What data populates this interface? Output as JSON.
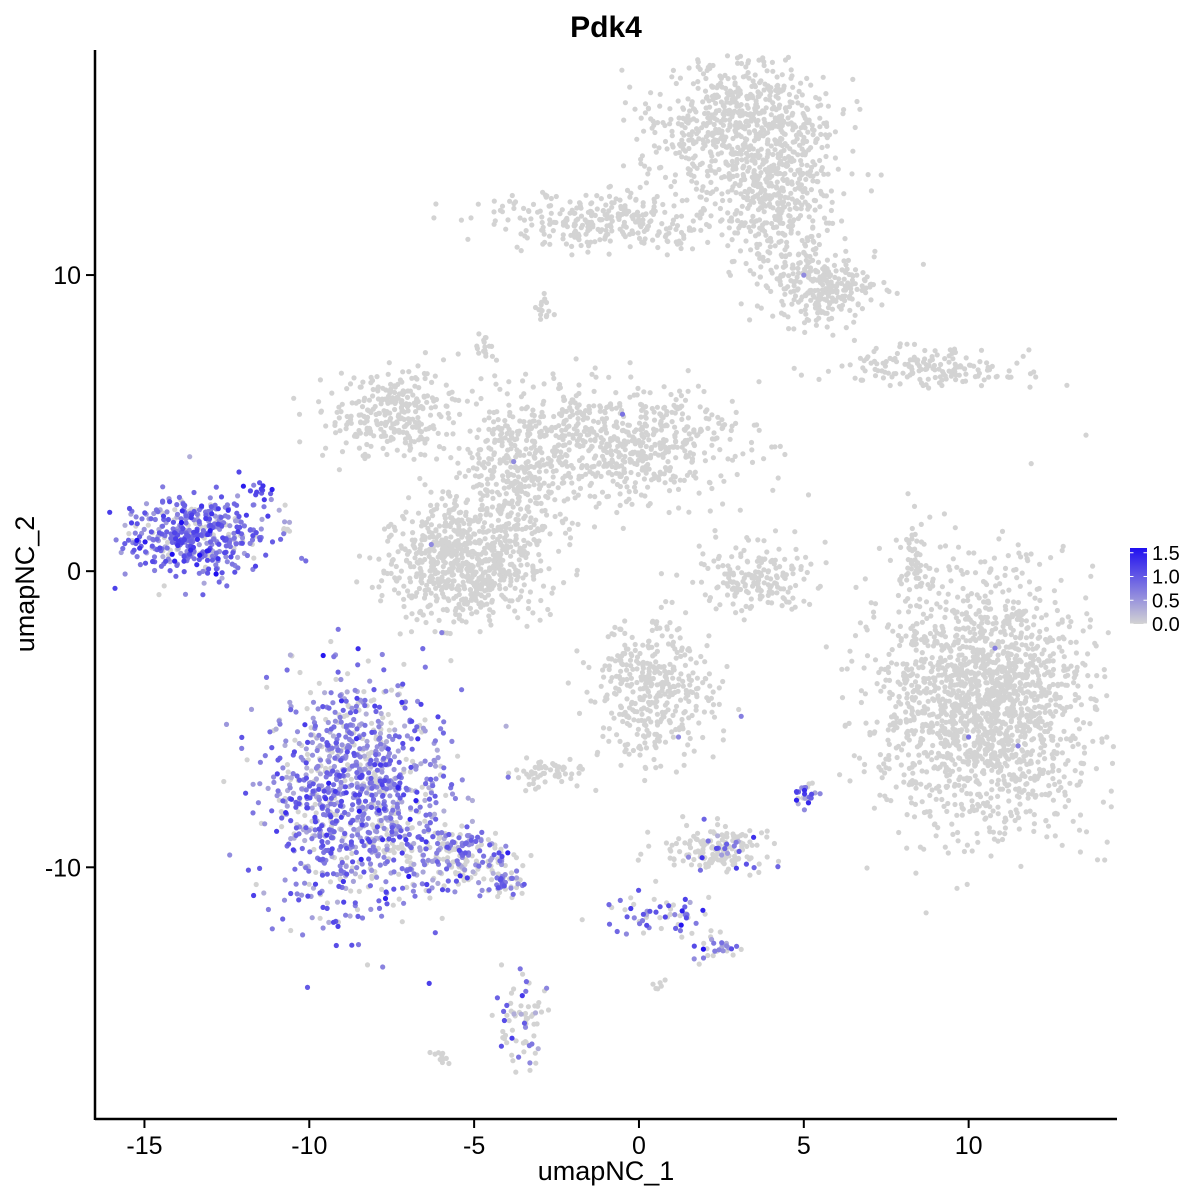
{
  "chart_data": {
    "type": "scatter",
    "title": "Pdk4",
    "xlabel": "umapNC_1",
    "ylabel": "umapNC_2",
    "xlim": [
      -16.5,
      14.5
    ],
    "ylim": [
      -18.5,
      17.6
    ],
    "x_ticks": [
      -15,
      -10,
      -5,
      0,
      5,
      10
    ],
    "x_tick_labels": [
      "-15",
      "-10",
      "-5",
      "0",
      "5",
      "10"
    ],
    "y_ticks": [
      -10,
      0,
      10
    ],
    "y_tick_labels": [
      "-10",
      "0",
      "10"
    ],
    "grid": false,
    "legend_position": "right",
    "color_scale": {
      "low_color": "#d3d3d3",
      "high_color": "#2010f0",
      "min": 0.0,
      "max": 1.6,
      "breaks": [
        0.0,
        0.5,
        1.0,
        1.5
      ],
      "break_labels": [
        "0.0",
        "0.5",
        "1.0",
        "1.5"
      ]
    },
    "clusters": [
      {
        "center": [
          -13.4,
          1.2
        ],
        "spread": [
          1.1,
          0.7
        ],
        "n": 450,
        "expr_frac": 0.85,
        "expr_level": 0.8
      },
      {
        "center": [
          -11.6,
          2.7
        ],
        "spread": [
          0.2,
          0.15
        ],
        "n": 12,
        "expr_frac": 1.0,
        "expr_level": 1.1
      },
      {
        "center": [
          -8.6,
          -7.6
        ],
        "spread": [
          1.3,
          1.9
        ],
        "n": 1100,
        "expr_frac": 0.75,
        "expr_level": 0.7
      },
      {
        "center": [
          -5.6,
          -9.6
        ],
        "spread": [
          0.9,
          0.6
        ],
        "n": 220,
        "expr_frac": 0.5,
        "expr_level": 0.7
      },
      {
        "center": [
          -4.0,
          -10.5
        ],
        "spread": [
          0.3,
          0.25
        ],
        "n": 40,
        "expr_frac": 0.6,
        "expr_level": 0.75
      },
      {
        "center": [
          -3.6,
          -15.0
        ],
        "spread": [
          0.4,
          0.7
        ],
        "n": 70,
        "expr_frac": 0.3,
        "expr_level": 0.7
      },
      {
        "center": [
          0.4,
          -11.6
        ],
        "spread": [
          0.9,
          0.35
        ],
        "n": 60,
        "expr_frac": 0.5,
        "expr_level": 0.85
      },
      {
        "center": [
          2.4,
          -12.7
        ],
        "spread": [
          0.3,
          0.2
        ],
        "n": 30,
        "expr_frac": 0.6,
        "expr_level": 0.8
      },
      {
        "center": [
          2.3,
          -9.4
        ],
        "spread": [
          0.8,
          0.4
        ],
        "n": 160,
        "expr_frac": 0.12,
        "expr_level": 0.7
      },
      {
        "center": [
          5.0,
          -7.6
        ],
        "spread": [
          0.18,
          0.25
        ],
        "n": 25,
        "expr_frac": 0.7,
        "expr_level": 0.8
      },
      {
        "center": [
          0.5,
          -4.0
        ],
        "spread": [
          0.9,
          1.2
        ],
        "n": 380,
        "expr_frac": 0.0,
        "expr_level": 0.0
      },
      {
        "center": [
          -2.5,
          -6.8
        ],
        "spread": [
          0.5,
          0.3
        ],
        "n": 60,
        "expr_frac": 0.0,
        "expr_level": 0.0
      },
      {
        "center": [
          10.5,
          -4.4
        ],
        "spread": [
          1.6,
          2.1
        ],
        "n": 1800,
        "expr_frac": 0.0,
        "expr_level": 0.0
      },
      {
        "center": [
          -5.3,
          0.3
        ],
        "spread": [
          1.2,
          1.0
        ],
        "n": 750,
        "expr_frac": 0.0,
        "expr_level": 0.0
      },
      {
        "center": [
          -7.5,
          5.3
        ],
        "spread": [
          1.0,
          0.7
        ],
        "n": 300,
        "expr_frac": 0.0,
        "expr_level": 0.0
      },
      {
        "center": [
          -3.8,
          3.3
        ],
        "spread": [
          0.9,
          1.3
        ],
        "n": 300,
        "expr_frac": 0.0,
        "expr_level": 0.0
      },
      {
        "center": [
          -0.6,
          4.3
        ],
        "spread": [
          1.8,
          1.0
        ],
        "n": 650,
        "expr_frac": 0.0,
        "expr_level": 0.0
      },
      {
        "center": [
          3.1,
          15.0
        ],
        "spread": [
          1.4,
          1.2
        ],
        "n": 700,
        "expr_frac": 0.0,
        "expr_level": 0.0
      },
      {
        "center": [
          4.2,
          12.4
        ],
        "spread": [
          0.8,
          1.3
        ],
        "n": 350,
        "expr_frac": 0.0,
        "expr_level": 0.0
      },
      {
        "center": [
          -1.0,
          11.8
        ],
        "spread": [
          1.7,
          0.5
        ],
        "n": 300,
        "expr_frac": 0.0,
        "expr_level": 0.0
      },
      {
        "center": [
          5.6,
          9.6
        ],
        "spread": [
          0.8,
          0.6
        ],
        "n": 250,
        "expr_frac": 0.0,
        "expr_level": 0.0
      },
      {
        "center": [
          8.9,
          6.9
        ],
        "spread": [
          1.5,
          0.3
        ],
        "n": 160,
        "expr_frac": 0.0,
        "expr_level": 0.0
      },
      {
        "center": [
          3.4,
          -0.3
        ],
        "spread": [
          0.9,
          0.6
        ],
        "n": 180,
        "expr_frac": 0.0,
        "expr_level": 0.0
      },
      {
        "center": [
          8.3,
          0.3
        ],
        "spread": [
          0.2,
          1.0
        ],
        "n": 60,
        "expr_frac": 0.0,
        "expr_level": 0.0
      },
      {
        "center": [
          -4.7,
          7.5
        ],
        "spread": [
          0.15,
          0.2
        ],
        "n": 15,
        "expr_frac": 0.0,
        "expr_level": 0.0
      },
      {
        "center": [
          -2.9,
          8.8
        ],
        "spread": [
          0.15,
          0.25
        ],
        "n": 15,
        "expr_frac": 0.0,
        "expr_level": 0.0
      },
      {
        "center": [
          -6.0,
          -16.4
        ],
        "spread": [
          0.15,
          0.1
        ],
        "n": 10,
        "expr_frac": 0.0,
        "expr_level": 0.0
      },
      {
        "center": [
          0.6,
          -14.0
        ],
        "spread": [
          0.1,
          0.08
        ],
        "n": 6,
        "expr_frac": 0.0,
        "expr_level": 0.0
      },
      {
        "center": [
          -10.7,
          1.4
        ],
        "spread": [
          0.12,
          0.08
        ],
        "n": 6,
        "expr_frac": 0.0,
        "expr_level": 0.0
      }
    ],
    "highlighted_points": [
      {
        "x": 10.8,
        "y": -2.6,
        "value": 0.7
      },
      {
        "x": 10.0,
        "y": -5.6,
        "value": 0.8
      },
      {
        "x": 11.5,
        "y": -5.9,
        "value": 0.7
      },
      {
        "x": 5.0,
        "y": 10.0,
        "value": 0.6
      },
      {
        "x": -0.5,
        "y": 5.3,
        "value": 0.8
      },
      {
        "x": -3.8,
        "y": 3.7,
        "value": 0.6
      },
      {
        "x": -6.3,
        "y": 0.9,
        "value": 0.6
      },
      {
        "x": 3.1,
        "y": -4.9,
        "value": 0.7
      },
      {
        "x": 1.2,
        "y": -5.6,
        "value": 0.6
      }
    ]
  }
}
